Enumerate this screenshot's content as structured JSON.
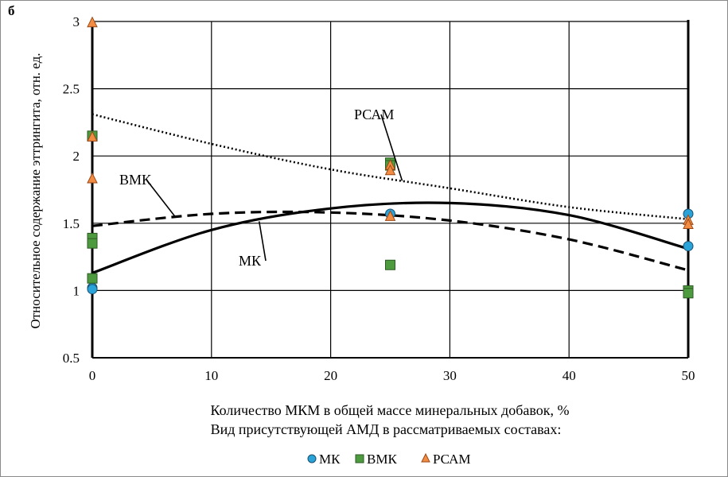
{
  "panel_label": "б",
  "chart_data": {
    "type": "scatter",
    "ylabel": "Относительное содержание эттрингита, отн. ед.",
    "xlabel": "Количество МКМ в общей массе минеральных добавок, %",
    "legend_title": "Вид присутствующей  АМД в рассматриваемых составах:",
    "xlim": [
      0,
      50
    ],
    "ylim": [
      0.5,
      3
    ],
    "x_ticks": [
      0,
      10,
      20,
      30,
      40,
      50
    ],
    "y_ticks": [
      0.5,
      1,
      1.5,
      2,
      2.5,
      3
    ],
    "y_tick_labels": [
      "0.5",
      "1",
      "1.5",
      "2",
      "2.5",
      "3"
    ],
    "grid": true,
    "legend_position": "bottom",
    "series": [
      {
        "name": "МК",
        "marker": "circle",
        "color": "#2aa3d8",
        "points": [
          [
            0,
            1.02
          ],
          [
            0,
            1.01
          ],
          [
            25,
            1.57
          ],
          [
            50,
            1.57
          ],
          [
            50,
            1.33
          ]
        ],
        "trend": {
          "label": "МК",
          "style": "solid",
          "points": [
            [
              0,
              1.13
            ],
            [
              10,
              1.45
            ],
            [
              20,
              1.61
            ],
            [
              30,
              1.65
            ],
            [
              40,
              1.56
            ],
            [
              50,
              1.31
            ]
          ]
        }
      },
      {
        "name": "ВМК",
        "marker": "square",
        "color": "#4e9a3f",
        "points": [
          [
            0,
            2.15
          ],
          [
            0,
            1.39
          ],
          [
            0,
            1.35
          ],
          [
            0,
            1.09
          ],
          [
            25,
            1.95
          ],
          [
            25,
            1.93
          ],
          [
            25,
            1.19
          ],
          [
            50,
            1.0
          ],
          [
            50,
            0.98
          ]
        ],
        "trend": {
          "label": "ВМК",
          "style": "dashed",
          "points": [
            [
              0,
              1.48
            ],
            [
              10,
              1.57
            ],
            [
              20,
              1.58
            ],
            [
              30,
              1.52
            ],
            [
              40,
              1.38
            ],
            [
              50,
              1.15
            ]
          ]
        }
      },
      {
        "name": "РСАМ",
        "marker": "triangle",
        "color": "#f28c43",
        "points": [
          [
            0,
            2.99
          ],
          [
            0,
            2.14
          ],
          [
            0,
            1.83
          ],
          [
            25,
            1.93
          ],
          [
            25,
            1.89
          ],
          [
            25,
            1.55
          ],
          [
            50,
            1.52
          ],
          [
            50,
            1.49
          ]
        ],
        "trend": {
          "label": "РСАМ",
          "style": "dotted",
          "points": [
            [
              0,
              2.31
            ],
            [
              10,
              2.09
            ],
            [
              20,
              1.9
            ],
            [
              30,
              1.76
            ],
            [
              40,
              1.62
            ],
            [
              50,
              1.53
            ]
          ]
        }
      }
    ]
  }
}
